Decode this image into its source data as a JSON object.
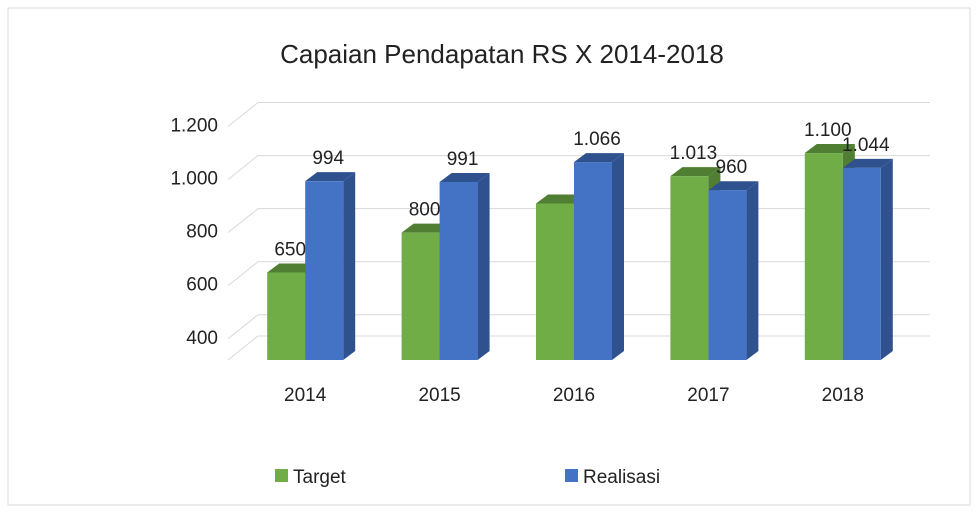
{
  "chart_data": {
    "type": "bar3d",
    "title": "Capaian Pendapatan RS X 2014-2018",
    "categories": [
      "2014",
      "2015",
      "2016",
      "2017",
      "2018"
    ],
    "series": [
      {
        "name": "Target",
        "color": "#70ad47",
        "side": "#507e32",
        "values": [
          650,
          800,
          910,
          1013,
          1100
        ],
        "value_labels": [
          "650",
          "800",
          null,
          "1.013",
          "1.100"
        ]
      },
      {
        "name": "Realisasi",
        "color": "#4472c4",
        "side": "#2f528f",
        "values": [
          994,
          991,
          1066,
          960,
          1044
        ],
        "value_labels": [
          "994",
          "991",
          "1.066",
          "960",
          "1.044"
        ]
      }
    ],
    "ylim": [
      320,
      1300
    ],
    "yticks": [
      {
        "value": 400,
        "label": "400"
      },
      {
        "value": 600,
        "label": "600"
      },
      {
        "value": 800,
        "label": "800"
      },
      {
        "value": 1000,
        "label": "1.000"
      },
      {
        "value": 1200,
        "label": "1.200"
      }
    ],
    "grid": true,
    "legend": "bottom"
  }
}
